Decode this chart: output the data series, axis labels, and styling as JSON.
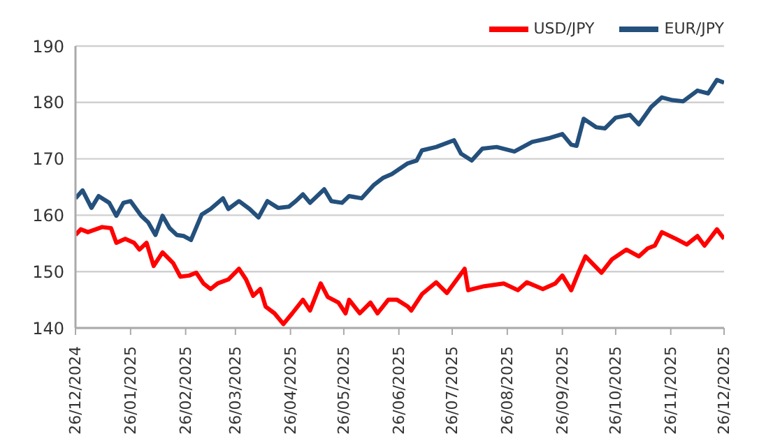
{
  "chart_data": {
    "type": "line",
    "xlim": [
      "2024-12-26",
      "2025-12-26"
    ],
    "ylim": [
      140,
      190
    ],
    "yticks": [
      140,
      150,
      160,
      170,
      180,
      190
    ],
    "xticks": [
      {
        "value": "2024-12-26",
        "label": "26/12/2024"
      },
      {
        "value": "2025-01-26",
        "label": "26/01/2025"
      },
      {
        "value": "2025-02-26",
        "label": "26/02/2025"
      },
      {
        "value": "2025-03-26",
        "label": "26/03/2025"
      },
      {
        "value": "2025-04-26",
        "label": "26/04/2025"
      },
      {
        "value": "2025-05-26",
        "label": "26/05/2025"
      },
      {
        "value": "2025-06-26",
        "label": "26/06/2025"
      },
      {
        "value": "2025-07-26",
        "label": "26/07/2025"
      },
      {
        "value": "2025-08-26",
        "label": "26/08/2025"
      },
      {
        "value": "2025-09-26",
        "label": "26/09/2025"
      },
      {
        "value": "2025-10-26",
        "label": "26/10/2025"
      },
      {
        "value": "2025-11-26",
        "label": "26/11/2025"
      },
      {
        "value": "2025-12-26",
        "label": "26/12/2025"
      }
    ],
    "grid": "y",
    "legend": "top right",
    "marker": "none",
    "line_style": "solid",
    "series": [
      {
        "name": "USD/JPY",
        "color": "#ff0000",
        "x": [
          "2024-12-26",
          "2024-12-29",
          "2025-01-02",
          "2025-01-10",
          "2025-01-15",
          "2025-01-18",
          "2025-01-23",
          "2025-01-28",
          "2025-01-31",
          "2025-02-04",
          "2025-02-08",
          "2025-02-13",
          "2025-02-19",
          "2025-02-23",
          "2025-02-28",
          "2025-03-04",
          "2025-03-08",
          "2025-03-12",
          "2025-03-16",
          "2025-03-22",
          "2025-03-28",
          "2025-04-01",
          "2025-04-05",
          "2025-04-09",
          "2025-04-12",
          "2025-04-17",
          "2025-04-22",
          "2025-04-27",
          "2025-05-03",
          "2025-05-07",
          "2025-05-13",
          "2025-05-17",
          "2025-05-23",
          "2025-05-27",
          "2025-05-29",
          "2025-06-04",
          "2025-06-10",
          "2025-06-14",
          "2025-06-20",
          "2025-06-25",
          "2025-07-01",
          "2025-07-03",
          "2025-07-09",
          "2025-07-17",
          "2025-07-23",
          "2025-08-02",
          "2025-08-04",
          "2025-08-13",
          "2025-08-24",
          "2025-09-01",
          "2025-09-06",
          "2025-09-15",
          "2025-09-22",
          "2025-09-26",
          "2025-10-01",
          "2025-10-05",
          "2025-10-09",
          "2025-10-18",
          "2025-10-24",
          "2025-11-01",
          "2025-11-08",
          "2025-11-13",
          "2025-11-17",
          "2025-11-21",
          "2025-11-29",
          "2025-12-05",
          "2025-12-11",
          "2025-12-15",
          "2025-12-22",
          "2025-12-26"
        ],
        "values": [
          156.5,
          157.5,
          157.0,
          157.9,
          157.7,
          155.1,
          155.8,
          155.1,
          153.9,
          155.1,
          151.0,
          153.4,
          151.5,
          149.1,
          149.3,
          149.8,
          147.9,
          146.9,
          147.9,
          148.6,
          150.5,
          148.6,
          145.7,
          146.9,
          143.8,
          142.6,
          140.7,
          142.6,
          145.0,
          143.1,
          147.9,
          145.5,
          144.5,
          142.6,
          145.0,
          142.6,
          144.5,
          142.6,
          145.0,
          145.0,
          143.8,
          143.1,
          146.0,
          148.1,
          146.2,
          150.5,
          146.7,
          147.4,
          147.9,
          146.7,
          148.1,
          146.9,
          147.9,
          149.3,
          146.7,
          149.8,
          152.7,
          149.8,
          152.2,
          153.9,
          152.7,
          154.1,
          154.6,
          157.0,
          155.8,
          154.8,
          156.3,
          154.6,
          157.5,
          155.8
        ]
      },
      {
        "name": "EUR/JPY",
        "color": "#24507c",
        "x": [
          "2024-12-26",
          "2024-12-30",
          "2025-01-04",
          "2025-01-08",
          "2025-01-14",
          "2025-01-18",
          "2025-01-22",
          "2025-01-26",
          "2025-02-01",
          "2025-02-05",
          "2025-02-09",
          "2025-02-13",
          "2025-02-17",
          "2025-02-21",
          "2025-02-25",
          "2025-03-01",
          "2025-03-07",
          "2025-03-12",
          "2025-03-19",
          "2025-03-22",
          "2025-03-28",
          "2025-04-03",
          "2025-04-08",
          "2025-04-13",
          "2025-04-19",
          "2025-04-25",
          "2025-04-29",
          "2025-05-03",
          "2025-05-07",
          "2025-05-15",
          "2025-05-19",
          "2025-05-25",
          "2025-05-29",
          "2025-06-05",
          "2025-06-12",
          "2025-06-17",
          "2025-06-22",
          "2025-07-01",
          "2025-07-06",
          "2025-07-09",
          "2025-07-17",
          "2025-07-27",
          "2025-07-31",
          "2025-08-06",
          "2025-08-12",
          "2025-08-20",
          "2025-08-30",
          "2025-09-09",
          "2025-09-19",
          "2025-09-26",
          "2025-10-01",
          "2025-10-04",
          "2025-10-08",
          "2025-10-15",
          "2025-10-20",
          "2025-10-26",
          "2025-11-03",
          "2025-11-08",
          "2025-11-15",
          "2025-11-21",
          "2025-11-27",
          "2025-12-03",
          "2025-12-11",
          "2025-12-17",
          "2025-12-22",
          "2025-12-26"
        ],
        "values": [
          163.0,
          164.4,
          161.3,
          163.4,
          162.2,
          159.9,
          162.2,
          162.5,
          159.9,
          158.7,
          156.5,
          159.9,
          157.7,
          156.5,
          156.3,
          155.6,
          160.1,
          161.1,
          163.0,
          161.1,
          162.5,
          161.1,
          159.6,
          162.5,
          161.3,
          161.5,
          162.5,
          163.7,
          162.2,
          164.6,
          162.5,
          162.2,
          163.4,
          163.0,
          165.4,
          166.6,
          167.3,
          169.2,
          169.7,
          171.5,
          172.1,
          173.3,
          170.9,
          169.7,
          171.8,
          172.1,
          171.3,
          173.0,
          173.7,
          174.4,
          172.5,
          172.3,
          177.1,
          175.6,
          175.4,
          177.3,
          177.8,
          176.1,
          179.2,
          180.9,
          180.4,
          180.2,
          182.1,
          181.6,
          184.0,
          183.5
        ]
      }
    ]
  }
}
